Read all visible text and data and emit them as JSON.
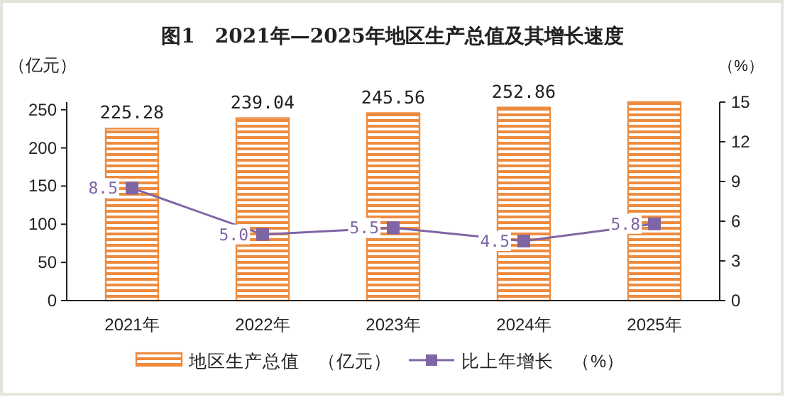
{
  "chart_data": {
    "type": "bar",
    "title": "图1　2021年—2025年地区生产总值及其增长速度",
    "ylabel": "（亿元）",
    "y2label": "（%）",
    "categories": [
      "2021年",
      "2022年",
      "2023年",
      "2024年",
      "2025年"
    ],
    "series": [
      {
        "name": "地区生产总值　（亿元）",
        "color": "#ed8b3f",
        "values": [
          225.28,
          239.04,
          245.56,
          252.86,
          260
        ],
        "value_labels": [
          "225.28",
          "239.04",
          "245.56",
          "252.86",
          null
        ]
      },
      {
        "name": "比上年增长　（%）",
        "type": "line",
        "axis": "y2",
        "color": "#7f65a3",
        "marker": "square",
        "values": [
          8.5,
          5.0,
          5.5,
          4.5,
          5.8
        ],
        "value_labels": [
          "8.5",
          "5.0",
          "5.5",
          "4.5",
          "5.8"
        ]
      }
    ],
    "ylim": [
      0,
      260
    ],
    "yticks": [
      0,
      50,
      100,
      150,
      200,
      250
    ],
    "y2lim": [
      0,
      15
    ],
    "y2ticks": [
      0,
      3,
      6,
      9,
      12,
      15
    ],
    "grid": false,
    "legend": "bottom"
  }
}
